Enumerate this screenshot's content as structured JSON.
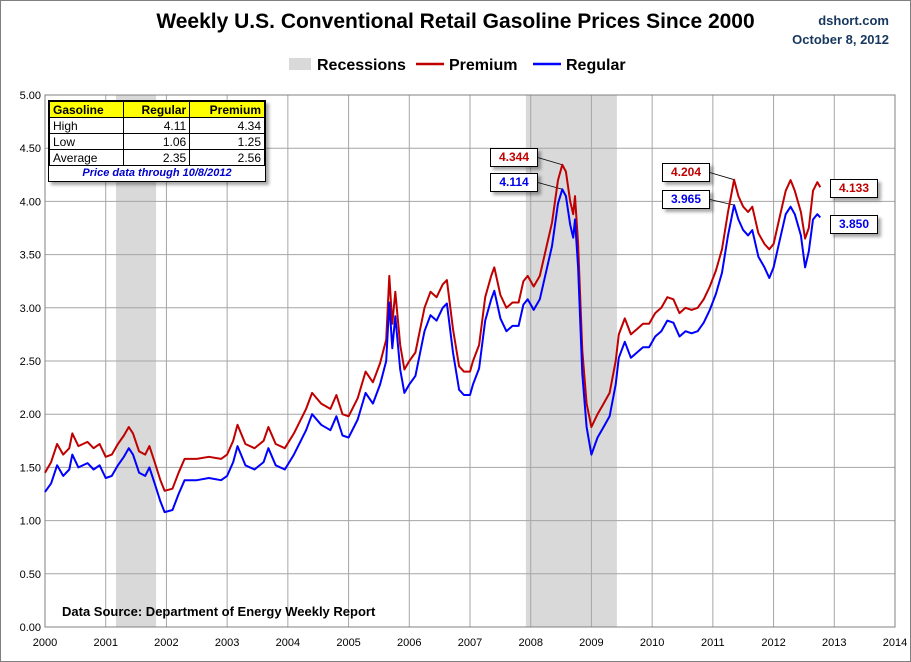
{
  "title": "Weekly U.S. Conventional Retail Gasoline Prices Since 2000",
  "brand": {
    "site": "dshort.com",
    "date": "October 8, 2012"
  },
  "legend": {
    "recessions": "Recessions",
    "premium": "Premium",
    "regular": "Regular"
  },
  "colors": {
    "premium": "#c00000",
    "regular": "#0000ff",
    "recession": "#d9d9d9",
    "grid": "#a6a6a6"
  },
  "stats_table": {
    "headers": [
      "Gasoline",
      "Regular",
      "Premium"
    ],
    "rows": [
      {
        "label": "High",
        "regular": "4.11",
        "premium": "4.34"
      },
      {
        "label": "Low",
        "regular": "1.06",
        "premium": "1.25"
      },
      {
        "label": "Average",
        "regular": "2.35",
        "premium": "2.56"
      }
    ],
    "note": "Price data through 10/8/2012"
  },
  "source": "Data Source: Department of Energy Weekly Report",
  "callouts": [
    {
      "series": "premium",
      "label": "4.344",
      "x": 2008.52,
      "y": 4.344
    },
    {
      "series": "regular",
      "label": "4.114",
      "x": 2008.52,
      "y": 4.114
    },
    {
      "series": "premium",
      "label": "4.204",
      "x": 2011.35,
      "y": 4.204
    },
    {
      "series": "regular",
      "label": "3.965",
      "x": 2011.35,
      "y": 3.965
    },
    {
      "series": "premium",
      "label": "4.133",
      "x": 2012.77,
      "y": 4.133
    },
    {
      "series": "regular",
      "label": "3.850",
      "x": 2012.77,
      "y": 3.85
    }
  ],
  "chart_data": {
    "type": "line",
    "title": "Weekly U.S. Conventional Retail Gasoline Prices Since 2000",
    "xlim": [
      2000,
      2014
    ],
    "ylim": [
      0,
      5
    ],
    "x_ticks": [
      "2000",
      "2001",
      "2002",
      "2003",
      "2004",
      "2005",
      "2006",
      "2007",
      "2008",
      "2009",
      "2010",
      "2011",
      "2012",
      "2013",
      "2014"
    ],
    "y_ticks": [
      "0.00",
      "0.50",
      "1.00",
      "1.50",
      "2.00",
      "2.50",
      "3.00",
      "3.50",
      "4.00",
      "4.50",
      "5.00"
    ],
    "grid": true,
    "legend_position": "top-center",
    "recessions": [
      [
        2001.17,
        2001.83
      ],
      [
        2007.92,
        2009.42
      ]
    ],
    "series": [
      {
        "name": "Premium",
        "points": [
          [
            2000.0,
            1.45
          ],
          [
            2000.1,
            1.55
          ],
          [
            2000.2,
            1.72
          ],
          [
            2000.3,
            1.62
          ],
          [
            2000.4,
            1.68
          ],
          [
            2000.45,
            1.82
          ],
          [
            2000.55,
            1.7
          ],
          [
            2000.7,
            1.74
          ],
          [
            2000.8,
            1.68
          ],
          [
            2000.9,
            1.72
          ],
          [
            2001.0,
            1.6
          ],
          [
            2001.1,
            1.62
          ],
          [
            2001.2,
            1.72
          ],
          [
            2001.3,
            1.8
          ],
          [
            2001.38,
            1.88
          ],
          [
            2001.45,
            1.82
          ],
          [
            2001.55,
            1.65
          ],
          [
            2001.65,
            1.62
          ],
          [
            2001.72,
            1.7
          ],
          [
            2001.8,
            1.56
          ],
          [
            2001.9,
            1.38
          ],
          [
            2001.97,
            1.28
          ],
          [
            2002.1,
            1.3
          ],
          [
            2002.2,
            1.45
          ],
          [
            2002.3,
            1.58
          ],
          [
            2002.5,
            1.58
          ],
          [
            2002.7,
            1.6
          ],
          [
            2002.9,
            1.58
          ],
          [
            2003.0,
            1.62
          ],
          [
            2003.1,
            1.75
          ],
          [
            2003.17,
            1.9
          ],
          [
            2003.3,
            1.72
          ],
          [
            2003.45,
            1.68
          ],
          [
            2003.6,
            1.75
          ],
          [
            2003.68,
            1.88
          ],
          [
            2003.8,
            1.72
          ],
          [
            2003.95,
            1.68
          ],
          [
            2004.1,
            1.82
          ],
          [
            2004.3,
            2.05
          ],
          [
            2004.4,
            2.2
          ],
          [
            2004.55,
            2.1
          ],
          [
            2004.7,
            2.05
          ],
          [
            2004.8,
            2.18
          ],
          [
            2004.9,
            2.0
          ],
          [
            2005.0,
            1.98
          ],
          [
            2005.15,
            2.15
          ],
          [
            2005.28,
            2.4
          ],
          [
            2005.4,
            2.3
          ],
          [
            2005.52,
            2.48
          ],
          [
            2005.62,
            2.7
          ],
          [
            2005.67,
            3.3
          ],
          [
            2005.72,
            2.85
          ],
          [
            2005.77,
            3.15
          ],
          [
            2005.85,
            2.65
          ],
          [
            2005.92,
            2.42
          ],
          [
            2006.0,
            2.5
          ],
          [
            2006.1,
            2.58
          ],
          [
            2006.25,
            3.0
          ],
          [
            2006.35,
            3.15
          ],
          [
            2006.45,
            3.1
          ],
          [
            2006.55,
            3.22
          ],
          [
            2006.62,
            3.26
          ],
          [
            2006.72,
            2.8
          ],
          [
            2006.82,
            2.45
          ],
          [
            2006.9,
            2.4
          ],
          [
            2007.0,
            2.4
          ],
          [
            2007.05,
            2.5
          ],
          [
            2007.15,
            2.65
          ],
          [
            2007.25,
            3.1
          ],
          [
            2007.35,
            3.3
          ],
          [
            2007.4,
            3.38
          ],
          [
            2007.5,
            3.12
          ],
          [
            2007.6,
            3.0
          ],
          [
            2007.7,
            3.05
          ],
          [
            2007.8,
            3.05
          ],
          [
            2007.88,
            3.25
          ],
          [
            2007.95,
            3.3
          ],
          [
            2008.05,
            3.2
          ],
          [
            2008.15,
            3.3
          ],
          [
            2008.25,
            3.55
          ],
          [
            2008.35,
            3.8
          ],
          [
            2008.45,
            4.2
          ],
          [
            2008.52,
            4.344
          ],
          [
            2008.58,
            4.28
          ],
          [
            2008.65,
            4.0
          ],
          [
            2008.7,
            3.88
          ],
          [
            2008.73,
            4.05
          ],
          [
            2008.78,
            3.6
          ],
          [
            2008.85,
            2.6
          ],
          [
            2008.92,
            2.1
          ],
          [
            2009.0,
            1.88
          ],
          [
            2009.1,
            2.0
          ],
          [
            2009.2,
            2.1
          ],
          [
            2009.3,
            2.2
          ],
          [
            2009.4,
            2.5
          ],
          [
            2009.45,
            2.75
          ],
          [
            2009.55,
            2.9
          ],
          [
            2009.65,
            2.75
          ],
          [
            2009.75,
            2.8
          ],
          [
            2009.85,
            2.85
          ],
          [
            2009.95,
            2.85
          ],
          [
            2010.05,
            2.95
          ],
          [
            2010.15,
            3.0
          ],
          [
            2010.25,
            3.1
          ],
          [
            2010.35,
            3.08
          ],
          [
            2010.45,
            2.95
          ],
          [
            2010.55,
            3.0
          ],
          [
            2010.65,
            2.98
          ],
          [
            2010.75,
            3.0
          ],
          [
            2010.85,
            3.08
          ],
          [
            2010.95,
            3.2
          ],
          [
            2011.05,
            3.35
          ],
          [
            2011.15,
            3.55
          ],
          [
            2011.25,
            3.9
          ],
          [
            2011.35,
            4.204
          ],
          [
            2011.42,
            4.05
          ],
          [
            2011.5,
            3.95
          ],
          [
            2011.58,
            3.9
          ],
          [
            2011.65,
            3.95
          ],
          [
            2011.75,
            3.7
          ],
          [
            2011.85,
            3.6
          ],
          [
            2011.93,
            3.55
          ],
          [
            2012.0,
            3.6
          ],
          [
            2012.1,
            3.85
          ],
          [
            2012.2,
            4.1
          ],
          [
            2012.28,
            4.2
          ],
          [
            2012.35,
            4.1
          ],
          [
            2012.45,
            3.9
          ],
          [
            2012.52,
            3.65
          ],
          [
            2012.58,
            3.75
          ],
          [
            2012.65,
            4.1
          ],
          [
            2012.72,
            4.18
          ],
          [
            2012.77,
            4.133
          ]
        ]
      },
      {
        "name": "Regular",
        "points": [
          [
            2000.0,
            1.27
          ],
          [
            2000.1,
            1.35
          ],
          [
            2000.2,
            1.52
          ],
          [
            2000.3,
            1.42
          ],
          [
            2000.4,
            1.48
          ],
          [
            2000.45,
            1.62
          ],
          [
            2000.55,
            1.5
          ],
          [
            2000.7,
            1.54
          ],
          [
            2000.8,
            1.48
          ],
          [
            2000.9,
            1.52
          ],
          [
            2001.0,
            1.4
          ],
          [
            2001.1,
            1.42
          ],
          [
            2001.2,
            1.52
          ],
          [
            2001.3,
            1.6
          ],
          [
            2001.38,
            1.68
          ],
          [
            2001.45,
            1.62
          ],
          [
            2001.55,
            1.45
          ],
          [
            2001.65,
            1.42
          ],
          [
            2001.72,
            1.5
          ],
          [
            2001.8,
            1.36
          ],
          [
            2001.9,
            1.18
          ],
          [
            2001.97,
            1.08
          ],
          [
            2002.1,
            1.1
          ],
          [
            2002.2,
            1.25
          ],
          [
            2002.3,
            1.38
          ],
          [
            2002.5,
            1.38
          ],
          [
            2002.7,
            1.4
          ],
          [
            2002.9,
            1.38
          ],
          [
            2003.0,
            1.42
          ],
          [
            2003.1,
            1.55
          ],
          [
            2003.17,
            1.7
          ],
          [
            2003.3,
            1.52
          ],
          [
            2003.45,
            1.48
          ],
          [
            2003.6,
            1.55
          ],
          [
            2003.68,
            1.68
          ],
          [
            2003.8,
            1.52
          ],
          [
            2003.95,
            1.48
          ],
          [
            2004.1,
            1.62
          ],
          [
            2004.3,
            1.85
          ],
          [
            2004.4,
            2.0
          ],
          [
            2004.55,
            1.9
          ],
          [
            2004.7,
            1.85
          ],
          [
            2004.8,
            1.98
          ],
          [
            2004.9,
            1.8
          ],
          [
            2005.0,
            1.78
          ],
          [
            2005.15,
            1.95
          ],
          [
            2005.28,
            2.2
          ],
          [
            2005.4,
            2.1
          ],
          [
            2005.52,
            2.28
          ],
          [
            2005.62,
            2.5
          ],
          [
            2005.67,
            3.05
          ],
          [
            2005.72,
            2.62
          ],
          [
            2005.77,
            2.92
          ],
          [
            2005.85,
            2.42
          ],
          [
            2005.92,
            2.2
          ],
          [
            2006.0,
            2.28
          ],
          [
            2006.1,
            2.36
          ],
          [
            2006.25,
            2.78
          ],
          [
            2006.35,
            2.93
          ],
          [
            2006.45,
            2.88
          ],
          [
            2006.55,
            3.0
          ],
          [
            2006.62,
            3.04
          ],
          [
            2006.72,
            2.58
          ],
          [
            2006.82,
            2.23
          ],
          [
            2006.9,
            2.18
          ],
          [
            2007.0,
            2.18
          ],
          [
            2007.05,
            2.28
          ],
          [
            2007.15,
            2.43
          ],
          [
            2007.25,
            2.88
          ],
          [
            2007.35,
            3.08
          ],
          [
            2007.4,
            3.16
          ],
          [
            2007.5,
            2.9
          ],
          [
            2007.6,
            2.78
          ],
          [
            2007.7,
            2.83
          ],
          [
            2007.8,
            2.83
          ],
          [
            2007.88,
            3.03
          ],
          [
            2007.95,
            3.08
          ],
          [
            2008.05,
            2.98
          ],
          [
            2008.15,
            3.08
          ],
          [
            2008.25,
            3.33
          ],
          [
            2008.35,
            3.58
          ],
          [
            2008.45,
            3.98
          ],
          [
            2008.52,
            4.114
          ],
          [
            2008.58,
            4.05
          ],
          [
            2008.65,
            3.78
          ],
          [
            2008.7,
            3.66
          ],
          [
            2008.73,
            3.83
          ],
          [
            2008.78,
            3.38
          ],
          [
            2008.85,
            2.38
          ],
          [
            2008.92,
            1.88
          ],
          [
            2009.0,
            1.62
          ],
          [
            2009.1,
            1.78
          ],
          [
            2009.2,
            1.88
          ],
          [
            2009.3,
            1.98
          ],
          [
            2009.4,
            2.28
          ],
          [
            2009.45,
            2.53
          ],
          [
            2009.55,
            2.68
          ],
          [
            2009.65,
            2.53
          ],
          [
            2009.75,
            2.58
          ],
          [
            2009.85,
            2.63
          ],
          [
            2009.95,
            2.63
          ],
          [
            2010.05,
            2.73
          ],
          [
            2010.15,
            2.78
          ],
          [
            2010.25,
            2.88
          ],
          [
            2010.35,
            2.86
          ],
          [
            2010.45,
            2.73
          ],
          [
            2010.55,
            2.78
          ],
          [
            2010.65,
            2.76
          ],
          [
            2010.75,
            2.78
          ],
          [
            2010.85,
            2.86
          ],
          [
            2010.95,
            2.98
          ],
          [
            2011.05,
            3.13
          ],
          [
            2011.15,
            3.33
          ],
          [
            2011.25,
            3.68
          ],
          [
            2011.35,
            3.965
          ],
          [
            2011.42,
            3.83
          ],
          [
            2011.5,
            3.73
          ],
          [
            2011.58,
            3.68
          ],
          [
            2011.65,
            3.73
          ],
          [
            2011.75,
            3.48
          ],
          [
            2011.85,
            3.38
          ],
          [
            2011.93,
            3.28
          ],
          [
            2012.0,
            3.38
          ],
          [
            2012.1,
            3.63
          ],
          [
            2012.2,
            3.88
          ],
          [
            2012.28,
            3.95
          ],
          [
            2012.35,
            3.88
          ],
          [
            2012.45,
            3.68
          ],
          [
            2012.52,
            3.38
          ],
          [
            2012.58,
            3.53
          ],
          [
            2012.65,
            3.83
          ],
          [
            2012.72,
            3.88
          ],
          [
            2012.77,
            3.85
          ]
        ]
      }
    ]
  }
}
